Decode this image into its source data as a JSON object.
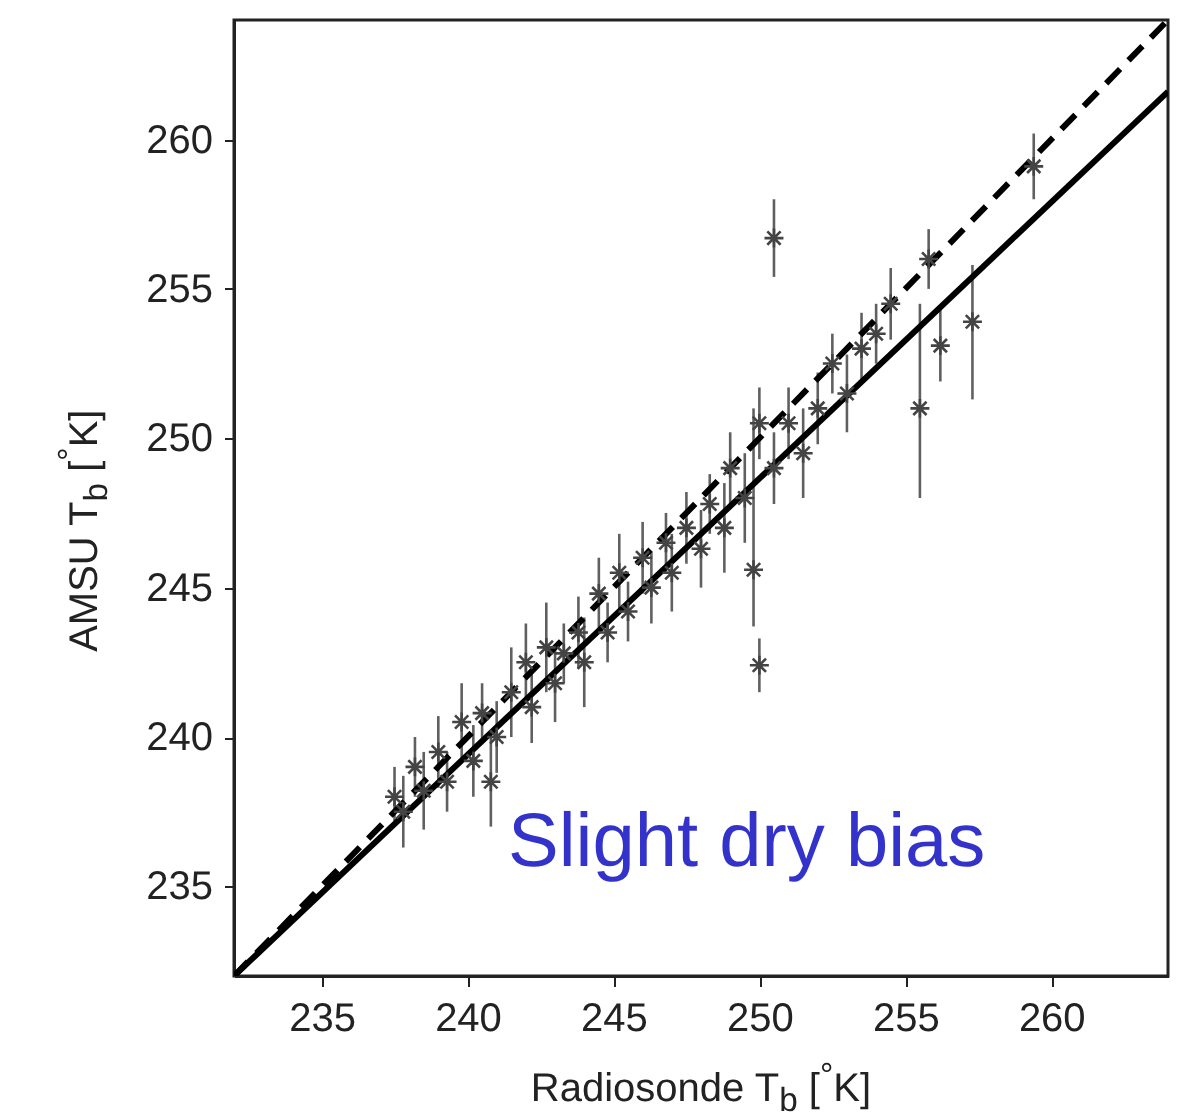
{
  "chart_data": {
    "type": "scatter",
    "xlabel": "Radiosonde T$_{b}$ [$^{°}$K]",
    "ylabel": "AMSU T$_{b}$ [$^{°}$K]",
    "xlim": [
      232,
      264
    ],
    "ylim": [
      232,
      264
    ],
    "xticks": [
      235,
      240,
      245,
      250,
      255,
      260
    ],
    "yticks": [
      235,
      240,
      245,
      250,
      255,
      260
    ],
    "grid": false,
    "annotations": [
      "Slight dry bias"
    ],
    "series": [
      {
        "color": "#444444",
        "marker": "cross",
        "x": [
          237.5,
          237.8,
          238.2,
          238.5,
          239,
          239.3,
          239.8,
          240.2,
          240.5,
          240.8,
          241,
          241.5,
          242,
          242.2,
          242.7,
          243,
          243.3,
          243.8,
          244,
          244.5,
          244.8,
          245.2,
          245.5,
          246,
          246.3,
          246.8,
          247,
          247.5,
          248,
          248.3,
          248.8,
          249,
          249.5,
          249.8,
          250,
          250,
          250.5,
          250.5,
          251,
          251.5,
          252,
          252.5,
          253,
          253.5,
          254,
          254.5,
          255.5,
          255.8,
          256.2,
          257.3,
          259.4
        ],
        "values": [
          238,
          237.5,
          239,
          238.2,
          239.5,
          238.5,
          240.5,
          239.2,
          240.8,
          238.5,
          240,
          241.5,
          242.5,
          241,
          243,
          241.8,
          242.8,
          243.5,
          242.5,
          244.8,
          243.5,
          245.5,
          244.2,
          246,
          245,
          246.5,
          245.5,
          247,
          246.3,
          247.8,
          247,
          249,
          248,
          245.6,
          242.4,
          250.5,
          249,
          256.7,
          250.5,
          249.5,
          251,
          252.5,
          251.5,
          253,
          253.5,
          254.5,
          251,
          256,
          253.1,
          253.9,
          259.1
        ],
        "errors": [
          1,
          1.2,
          1,
          1.3,
          1.2,
          1,
          1.3,
          1.2,
          1,
          1.5,
          1.2,
          1.5,
          1.3,
          1.2,
          1.5,
          1.3,
          1,
          1.2,
          1.5,
          1.2,
          1,
          1.3,
          1,
          1.2,
          1.2,
          1,
          1.3,
          1.2,
          1.3,
          1,
          1.5,
          1.2,
          1.5,
          [
            243.7,
            251
          ],
          0.9,
          1.2,
          1.2,
          1.3,
          1.2,
          1.5,
          1.2,
          1,
          1.3,
          1.2,
          1,
          1.2,
          [
            248,
            254.5
          ],
          1,
          1.2,
          [
            251.3,
            255.8
          ],
          1.1
        ]
      },
      {
        "type": "line",
        "color": "#000000",
        "line_style": "dashed",
        "x": [
          232,
          264
        ],
        "values": [
          232,
          264
        ]
      },
      {
        "type": "line",
        "color": "#000000",
        "line_style": "solid",
        "x": [
          232,
          264
        ],
        "values": [
          232,
          261.6
        ]
      }
    ]
  }
}
